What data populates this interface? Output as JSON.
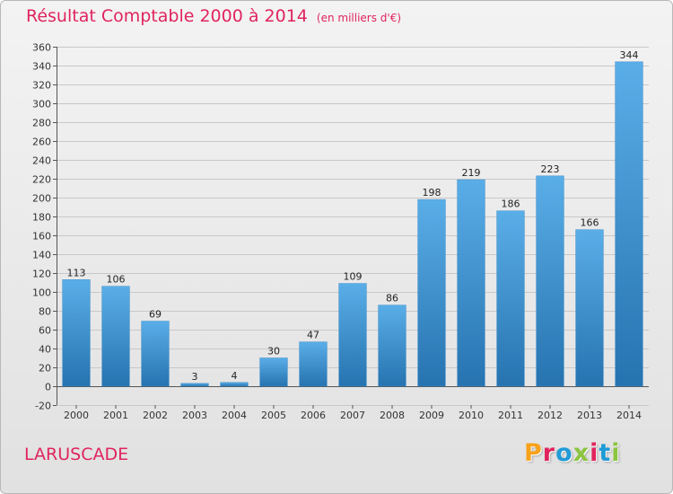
{
  "header": {
    "title": "Résultat Comptable 2000 à 2014",
    "subtitle": "(en milliers d'€)"
  },
  "footer": {
    "commune": "LARUSCADE",
    "brand": "Proxiti",
    "brand_colors": [
      "#f7a21b",
      "#e0245e",
      "#1f9bd7",
      "#8bc53f",
      "#e0245e",
      "#1f9bd7",
      "#8bc53f"
    ]
  },
  "colors": {
    "accent": "#e0245e",
    "bar_light": "#5aaee8",
    "bar_dark": "#2673b0",
    "grid": "#c8c8c8"
  },
  "chart_data": {
    "type": "bar",
    "categories": [
      "2000",
      "2001",
      "2002",
      "2003",
      "2004",
      "2005",
      "2006",
      "2007",
      "2008",
      "2009",
      "2010",
      "2011",
      "2012",
      "2013",
      "2014"
    ],
    "values": [
      113,
      106,
      69,
      3,
      4,
      30,
      47,
      109,
      86,
      198,
      219,
      186,
      223,
      166,
      344
    ],
    "title": "Résultat Comptable 2000 à 2014",
    "subtitle": "(en milliers d'€)",
    "ylim": [
      -20,
      360
    ],
    "yticks": [
      -20,
      0,
      20,
      40,
      60,
      80,
      100,
      120,
      140,
      160,
      180,
      200,
      220,
      240,
      260,
      280,
      300,
      320,
      340,
      360
    ],
    "grid": true,
    "data_labels": true
  }
}
